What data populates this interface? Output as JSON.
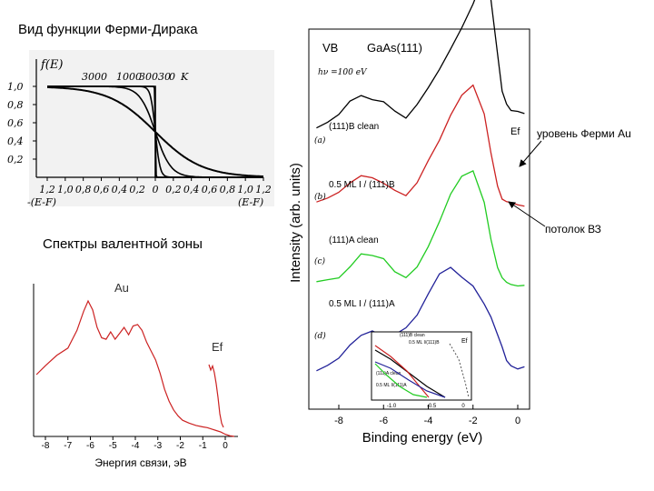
{
  "slide": {
    "title": "Вид функции Ферми-Дирака",
    "valence_title": "Спектры валентной зоны",
    "fermi_level_note": "уровень Ферми Au",
    "vb_top_note": "потолок ВЗ"
  },
  "chart_data": [
    {
      "type": "line",
      "title": "Вид функции Ферми-Дирака",
      "ylabel": "f(E)",
      "xlabel_left": "-(E-F)",
      "xlabel_right": "(E-F)",
      "x_ticks": [
        "1,2",
        "1,0",
        "0,8",
        "0,6",
        "0,4",
        "0,2",
        "0",
        "0,2",
        "0,4",
        "0,6",
        "0,8",
        "1,0",
        "1,2"
      ],
      "y_ticks": [
        "1,0",
        "0,8",
        "0,6",
        "0,4",
        "0,2"
      ],
      "temperature_label_K": "K",
      "series": [
        {
          "name": "3000",
          "kT": 0.259
        },
        {
          "name": "1000",
          "kT": 0.0862
        },
        {
          "name": "300",
          "kT": 0.0259
        },
        {
          "name": "30",
          "kT": 0.0026
        },
        {
          "name": "0",
          "kT": 0
        }
      ]
    },
    {
      "type": "line",
      "title": "Au",
      "xlabel": "Энергия связи, эВ",
      "x_ticks": [
        "-8",
        "-7",
        "-6",
        "-5",
        "-4",
        "-3",
        "-2",
        "-1",
        "0"
      ],
      "annotations": [
        "Au",
        "Ef"
      ],
      "x": [
        -8.4,
        -8.0,
        -7.5,
        -7.0,
        -6.6,
        -6.3,
        -6.1,
        -5.9,
        -5.7,
        -5.5,
        -5.3,
        -5.1,
        -4.9,
        -4.7,
        -4.5,
        -4.3,
        -4.1,
        -3.9,
        -3.7,
        -3.5,
        -3.3,
        -3.1,
        -2.9,
        -2.7,
        -2.5,
        -2.3,
        -2.1,
        -1.9,
        -1.6,
        -1.3,
        -1.0,
        -0.8,
        -0.6,
        -0.4,
        -0.2,
        0.0,
        0.2,
        0.4
      ],
      "y": [
        0.42,
        0.48,
        0.55,
        0.6,
        0.72,
        0.85,
        0.92,
        0.86,
        0.74,
        0.67,
        0.66,
        0.71,
        0.66,
        0.7,
        0.74,
        0.69,
        0.75,
        0.76,
        0.72,
        0.64,
        0.58,
        0.52,
        0.43,
        0.32,
        0.24,
        0.18,
        0.14,
        0.11,
        0.09,
        0.075,
        0.065,
        0.06,
        0.05,
        0.04,
        0.03,
        0.015,
        0.005,
        0.0
      ],
      "ef_inset_x": [
        -0.8,
        -0.7,
        -0.6,
        -0.5,
        -0.4,
        -0.3,
        -0.2,
        -0.1,
        0.0
      ],
      "ef_inset_y": [
        0.46,
        0.42,
        0.45,
        0.4,
        0.32,
        0.22,
        0.1,
        0.03,
        0.0
      ]
    },
    {
      "type": "line",
      "title": "GaAs(111)",
      "tag": "VB",
      "photon_energy": "hν =100 eV",
      "xlabel": "Binding energy (eV)",
      "ylabel": "Intensity (arb. units)",
      "x_ticks": [
        "-8",
        "-6",
        "-4",
        "-2",
        "0"
      ],
      "xlim": [
        -9,
        0.5
      ],
      "ef_label": "Ef",
      "x": [
        -9,
        -8.5,
        -8,
        -7.5,
        -7,
        -6.5,
        -6,
        -5.5,
        -5,
        -4.5,
        -4,
        -3.5,
        -3,
        -2.5,
        -2,
        -1.5,
        -1.2,
        -0.9,
        -0.7,
        -0.5,
        -0.3,
        0,
        0.3
      ],
      "series": [
        {
          "name": "(111)B clean",
          "label": "(a)",
          "color": "#000000",
          "offset": 0.74,
          "values": [
            0.0,
            0.01,
            0.03,
            0.07,
            0.09,
            0.08,
            0.07,
            0.04,
            0.02,
            0.06,
            0.11,
            0.16,
            0.21,
            0.26,
            0.32,
            0.4,
            0.34,
            0.2,
            0.1,
            0.06,
            0.04,
            0.04,
            0.04
          ]
        },
        {
          "name": "0.5 ML I / (111)B",
          "label": "(b)",
          "color": "#cc2222",
          "offset": 0.54,
          "values": [
            0.0,
            0.01,
            0.03,
            0.06,
            0.08,
            0.07,
            0.05,
            0.03,
            0.02,
            0.06,
            0.12,
            0.17,
            0.23,
            0.28,
            0.31,
            0.24,
            0.14,
            0.05,
            0.01,
            0.0,
            0.0,
            0.0,
            0.0
          ]
        },
        {
          "name": "(111)A clean",
          "label": "(c)",
          "color": "#22cc22",
          "offset": 0.33,
          "values": [
            0.0,
            0.01,
            0.02,
            0.05,
            0.08,
            0.07,
            0.06,
            0.03,
            0.02,
            0.05,
            0.1,
            0.16,
            0.23,
            0.28,
            0.3,
            0.22,
            0.12,
            0.04,
            0.01,
            0.0,
            0.0,
            0.0,
            0.0
          ]
        },
        {
          "name": "0.5 ML I / (111)A",
          "label": "(d)",
          "color": "#222299",
          "offset": 0.1,
          "values": [
            0.0,
            0.02,
            0.04,
            0.07,
            0.09,
            0.1,
            0.09,
            0.1,
            0.12,
            0.15,
            0.2,
            0.25,
            0.27,
            0.25,
            0.23,
            0.18,
            0.14,
            0.09,
            0.06,
            0.03,
            0.02,
            0.01,
            0.01
          ]
        }
      ],
      "inset": {
        "x_ticks": [
          "-1.0",
          "-0.5",
          "0"
        ],
        "labels": [
          "(111)B clean",
          "0.5 ML I/(111)B",
          "(111)A clean",
          "0.5 ML I/(111)A",
          "Ef"
        ]
      }
    }
  ]
}
